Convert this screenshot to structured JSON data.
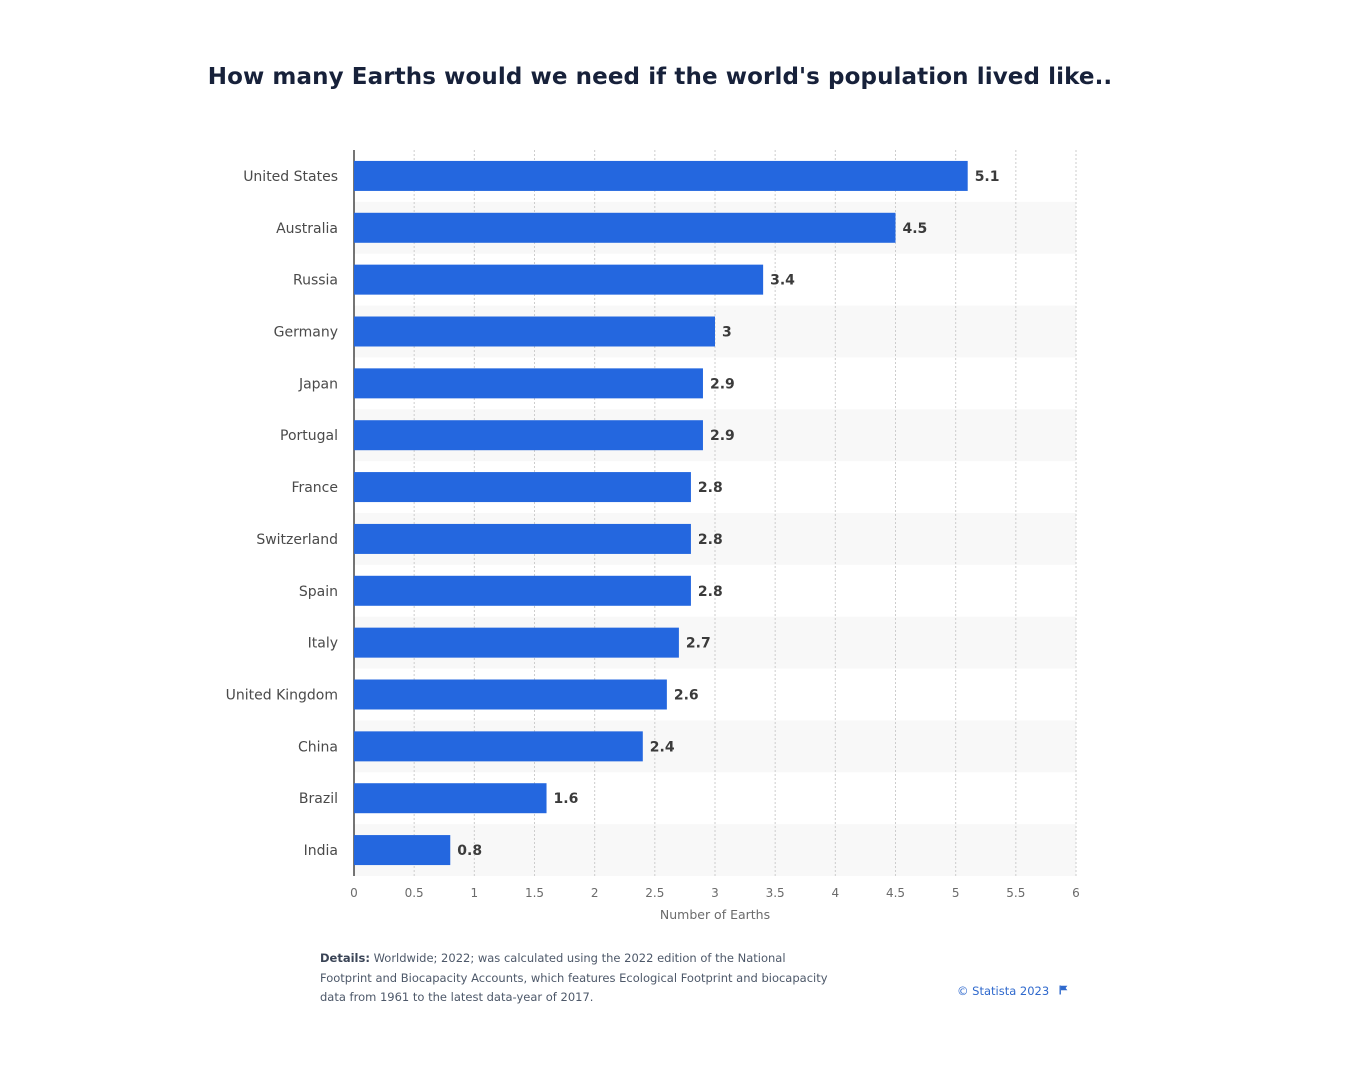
{
  "chart_data": {
    "type": "bar",
    "orientation": "horizontal",
    "title": "How many Earths would we need if the world's population lived like..",
    "categories": [
      "United States",
      "Australia",
      "Russia",
      "Germany",
      "Japan",
      "Portugal",
      "France",
      "Switzerland",
      "Spain",
      "Italy",
      "United Kingdom",
      "China",
      "Brazil",
      "India"
    ],
    "values": [
      5.1,
      4.5,
      3.4,
      3,
      2.9,
      2.9,
      2.8,
      2.8,
      2.8,
      2.7,
      2.6,
      2.4,
      1.6,
      0.8
    ],
    "value_labels": [
      "5.1",
      "4.5",
      "3.4",
      "3",
      "2.9",
      "2.9",
      "2.8",
      "2.8",
      "2.8",
      "2.7",
      "2.6",
      "2.4",
      "1.6",
      "0.8"
    ],
    "xlabel": "Number of Earths",
    "ylabel": "",
    "xlim": [
      0,
      6
    ],
    "xticks": [
      0,
      0.5,
      1,
      1.5,
      2,
      2.5,
      3,
      3.5,
      4,
      4.5,
      5,
      5.5,
      6
    ],
    "xtick_labels": [
      "0",
      "0.5",
      "1",
      "1.5",
      "2",
      "2.5",
      "3",
      "3.5",
      "4",
      "4.5",
      "5",
      "5.5",
      "6"
    ],
    "grid": true,
    "bar_color": "#2467df"
  },
  "footer": {
    "details_label": "Details:",
    "details_text": "Worldwide; 2022; was calculated using the 2022 edition of the National Footprint and Biocapacity Accounts, which features Ecological Footprint and biocapacity data from 1961 to the latest data-year of 2017.",
    "credit": "© Statista 2023"
  },
  "icons": {
    "flag": "flag-icon"
  }
}
